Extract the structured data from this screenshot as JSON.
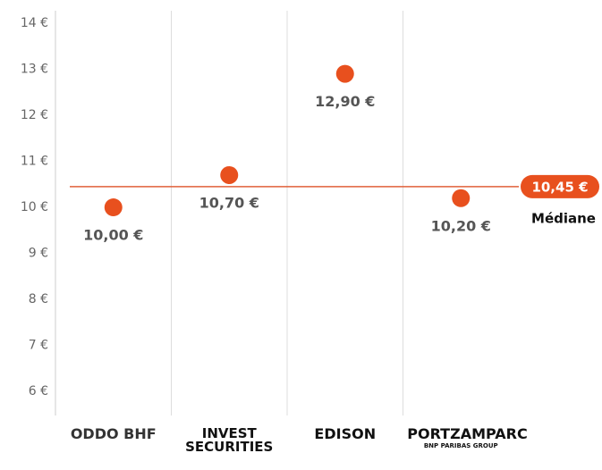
{
  "chart_data": {
    "type": "dot",
    "categories": [
      "ODDO BHF",
      "INVEST SECURITIES",
      "EDISON",
      "PORTZAMPARC"
    ],
    "category_sublabels": [
      null,
      null,
      null,
      "BNP PARIBAS GROUP"
    ],
    "values": [
      10.0,
      10.7,
      12.9,
      10.2
    ],
    "value_labels": [
      "10,00 €",
      "10,70 €",
      "12,90 €",
      "10,20 €"
    ],
    "color": "#e8501e",
    "median": {
      "value": 10.45,
      "label": "10,45 €",
      "name": "Médiane"
    },
    "ylim": [
      5.48,
      14.27
    ],
    "yticks": [
      {
        "value": 6,
        "label": "6 €"
      },
      {
        "value": 7,
        "label": "7 €"
      },
      {
        "value": 8,
        "label": "8 €"
      },
      {
        "value": 9,
        "label": "9 €"
      },
      {
        "value": 10,
        "label": "10 €"
      },
      {
        "value": 11,
        "label": "11 €"
      },
      {
        "value": 12,
        "label": "12 €"
      },
      {
        "value": 13,
        "label": "13 €"
      },
      {
        "value": 14,
        "label": "14 €"
      }
    ],
    "grid": true
  }
}
